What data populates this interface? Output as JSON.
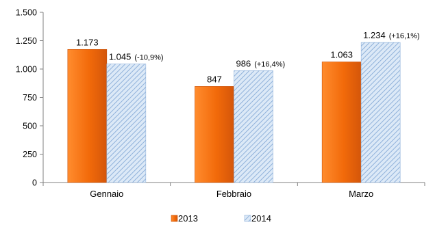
{
  "chart_data": {
    "type": "bar",
    "categories": [
      "Gennaio",
      "Febbraio",
      "Marzo"
    ],
    "series": [
      {
        "name": "2013",
        "values": [
          1173,
          847,
          1063
        ],
        "labels": [
          "1.173",
          "847",
          "1.063"
        ],
        "color": "#f26a0a"
      },
      {
        "name": "2014",
        "values": [
          1045,
          986,
          1234
        ],
        "labels": [
          "1.045",
          "986",
          "1.234"
        ],
        "changes": [
          "(-10,9%)",
          "(+16,4%)",
          "(+16,1%)"
        ],
        "color": "#a9c6e8",
        "pattern": "diagonal-hatch"
      }
    ],
    "ylim": [
      0,
      1500
    ],
    "yticks": [
      0,
      250,
      500,
      750,
      1000,
      1250,
      1500
    ],
    "ytick_labels": [
      "0",
      "250",
      "500",
      "750",
      "1.000",
      "1.250",
      "1.500"
    ],
    "title": "",
    "xlabel": "",
    "ylabel": "",
    "grid": false,
    "legend_position": "bottom"
  }
}
